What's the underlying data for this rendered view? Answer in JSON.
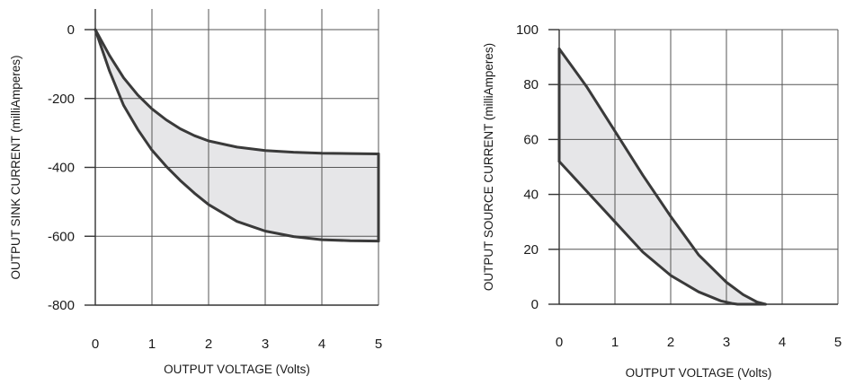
{
  "chart_data": [
    {
      "type": "area",
      "title": "",
      "xlabel": "OUTPUT VOLTAGE  (Volts)",
      "ylabel": "OUTPUT SINK CURRENT  (milliAmperes)",
      "xlim": [
        0,
        5
      ],
      "ylim": [
        -800,
        0
      ],
      "xticks": [
        0,
        1,
        2,
        3,
        4,
        5
      ],
      "yticks": [
        0,
        -200,
        -400,
        -600,
        -800
      ],
      "grid": true,
      "series": [
        {
          "x": [
            0,
            0.25,
            0.5,
            0.75,
            1,
            1.25,
            1.5,
            1.75,
            2,
            2.5,
            3,
            3.5,
            4,
            4.5,
            5
          ],
          "values": [
            0,
            -75,
            -140,
            -190,
            -230,
            -262,
            -288,
            -308,
            -323,
            -341,
            -351,
            -356,
            -359,
            -360,
            -361
          ]
        },
        {
          "x": [
            0,
            0.25,
            0.5,
            0.75,
            1,
            1.25,
            1.5,
            1.75,
            2,
            2.5,
            3,
            3.5,
            4,
            4.5,
            5
          ],
          "values": [
            0,
            -120,
            -220,
            -290,
            -350,
            -397,
            -438,
            -475,
            -508,
            -557,
            -585,
            -601,
            -610,
            -613,
            -614
          ]
        }
      ]
    },
    {
      "type": "area",
      "title": "",
      "xlabel": "OUTPUT VOLTAGE  (Volts)",
      "ylabel": "OUTPUT SOURCE CURRENT  (milliAmperes)",
      "xlim": [
        0,
        5
      ],
      "ylim": [
        0,
        100
      ],
      "xticks": [
        0,
        1,
        2,
        3,
        4,
        5
      ],
      "yticks": [
        100,
        80,
        60,
        40,
        20,
        0
      ],
      "grid": true,
      "series": [
        {
          "x": [
            0,
            0.25,
            0.5,
            1,
            1.5,
            2,
            2.5,
            3,
            3.3,
            3.55,
            3.7
          ],
          "values": [
            93,
            86,
            79,
            63,
            47,
            32,
            18,
            8,
            3.5,
            0.8,
            0
          ]
        },
        {
          "x": [
            0,
            0.5,
            1,
            1.5,
            2,
            2.5,
            2.9,
            3.1,
            3.2,
            3.7
          ],
          "values": [
            52,
            41,
            30,
            19,
            10.5,
            4.5,
            1.2,
            0.3,
            0,
            0
          ]
        }
      ]
    }
  ]
}
